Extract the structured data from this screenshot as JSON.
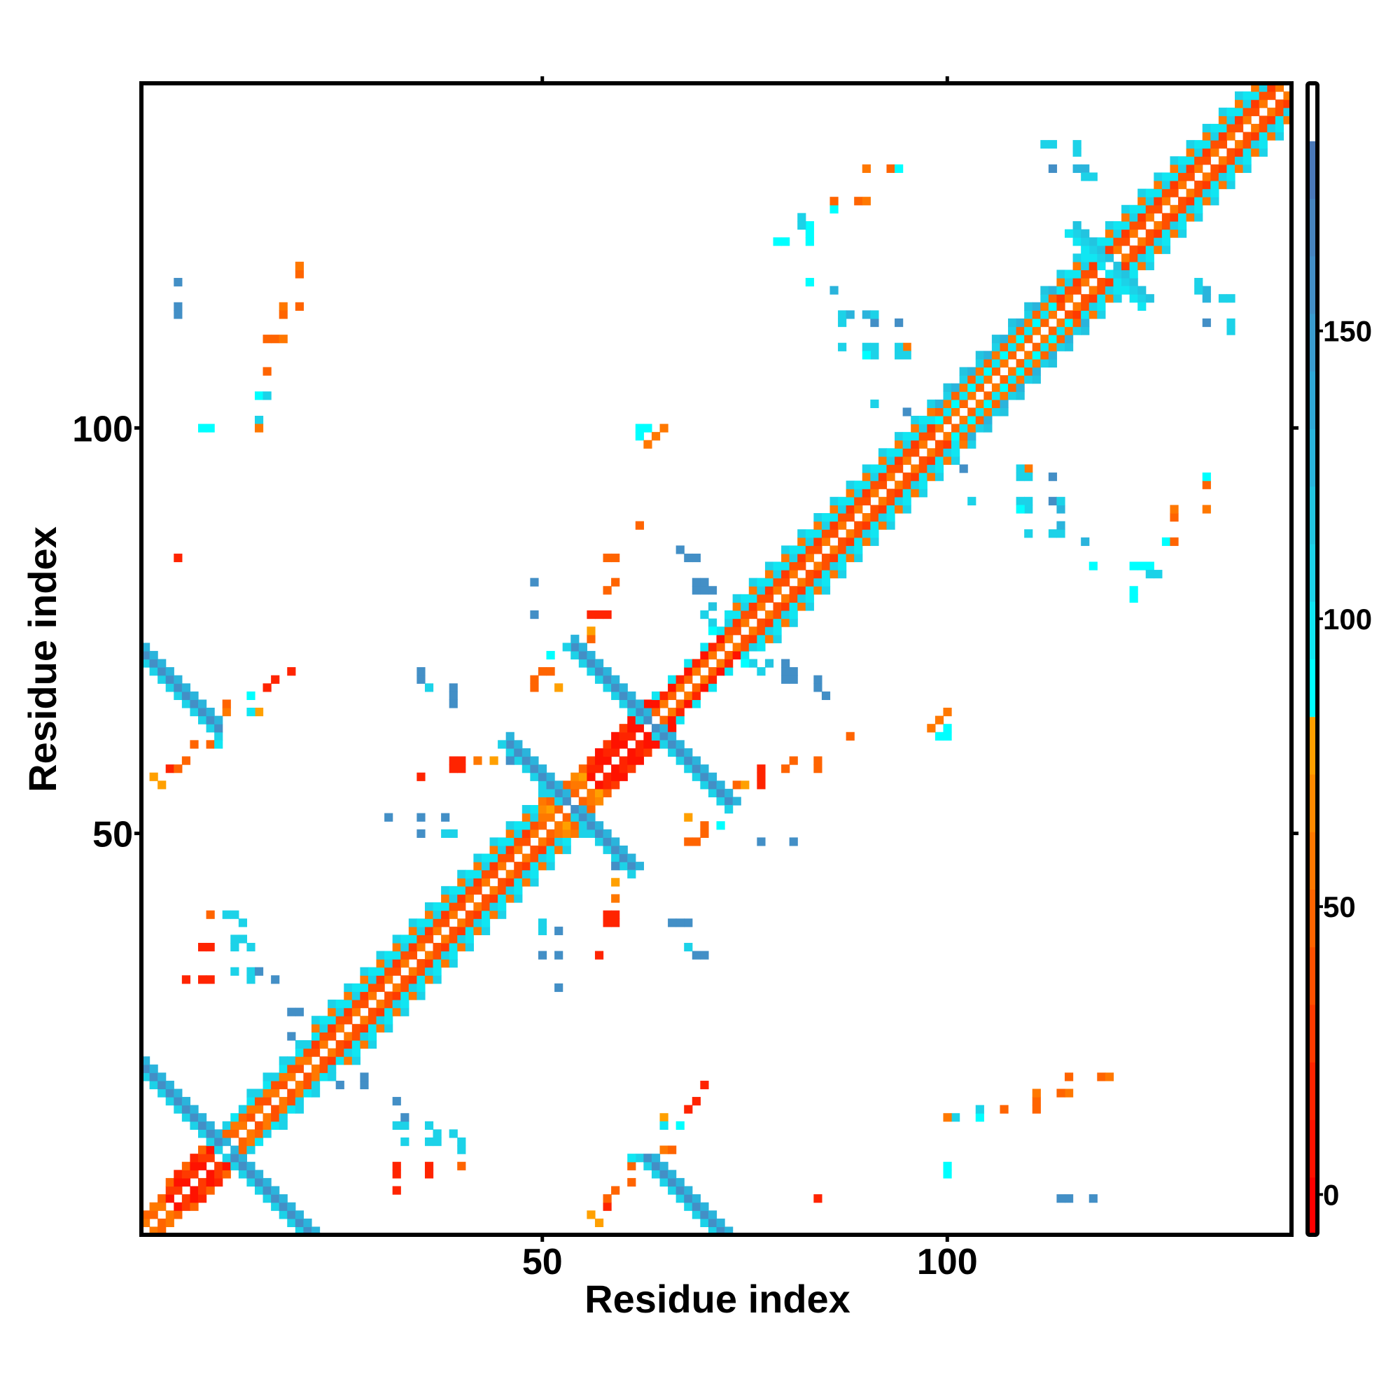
{
  "chart_data": {
    "type": "heatmap",
    "symmetric": true,
    "xlabel": "Residue index",
    "ylabel": "Residue index",
    "xlim": [
      0.5,
      142.5
    ],
    "ylim": [
      0.5,
      142.5
    ],
    "xticks": [
      {
        "value": 50,
        "label": "50"
      },
      {
        "value": 100,
        "label": "100"
      }
    ],
    "yticks": [
      {
        "value": 50,
        "label": "50"
      },
      {
        "value": 100,
        "label": "100"
      }
    ],
    "colorbar": {
      "range": [
        -7,
        193
      ],
      "ticks": [
        {
          "value": 0,
          "label": "0"
        },
        {
          "value": 50,
          "label": "50"
        },
        {
          "value": 100,
          "label": "100"
        },
        {
          "value": 150,
          "label": "150"
        }
      ],
      "bins": [
        [
          -7,
          3,
          "#ff0000"
        ],
        [
          3,
          13,
          "#ff1200"
        ],
        [
          13,
          23,
          "#ff2400"
        ],
        [
          23,
          33,
          "#ff3a00"
        ],
        [
          33,
          43,
          "#ff5000"
        ],
        [
          43,
          53,
          "#ff6400"
        ],
        [
          53,
          63,
          "#ff7800"
        ],
        [
          63,
          73,
          "#ff8a00"
        ],
        [
          73,
          83,
          "#ffa000"
        ],
        [
          83,
          93,
          "#00ffff"
        ],
        [
          93,
          103,
          "#10e6f2"
        ],
        [
          103,
          113,
          "#1cd2e8"
        ],
        [
          113,
          123,
          "#22c4e0"
        ],
        [
          123,
          133,
          "#2ab4dc"
        ],
        [
          133,
          143,
          "#30a8d6"
        ],
        [
          143,
          153,
          "#3a9ccf"
        ],
        [
          153,
          163,
          "#438fc6"
        ],
        [
          163,
          173,
          "#4784be"
        ],
        [
          173,
          183,
          "#4a78b8"
        ],
        [
          183,
          193,
          "#ffffff"
        ]
      ]
    },
    "diagonal_segments": [
      {
        "from": 1,
        "to": 4,
        "profile": [
          45,
          55,
          0
        ],
        "alt": [
          55,
          45,
          0
        ]
      },
      {
        "from": 4,
        "to": 10,
        "profile": [
          5,
          25,
          45
        ],
        "alt": [
          25,
          5,
          15
        ]
      },
      {
        "from": 10,
        "to": 14,
        "profile": [
          45,
          55,
          100
        ],
        "alt": [
          55,
          45,
          110
        ]
      },
      {
        "from": 14,
        "to": 22,
        "profile": [
          40,
          55,
          95,
          110
        ],
        "alt": [
          55,
          40,
          110,
          0
        ]
      },
      {
        "from": 22,
        "to": 50,
        "profile": [
          40,
          25,
          100,
          55,
          110
        ],
        "alt": [
          55,
          40,
          110,
          95,
          0
        ]
      },
      {
        "from": 50,
        "to": 56,
        "profile": [
          45,
          55,
          65
        ],
        "alt": [
          55,
          75,
          45
        ]
      },
      {
        "from": 56,
        "to": 64,
        "profile": [
          5,
          15,
          30
        ],
        "alt": [
          15,
          5,
          5
        ]
      },
      {
        "from": 64,
        "to": 73,
        "profile": [
          45,
          5,
          95
        ],
        "alt": [
          55,
          15,
          0
        ]
      },
      {
        "from": 73,
        "to": 99,
        "profile": [
          40,
          25,
          100,
          55,
          110
        ],
        "alt": [
          55,
          40,
          110,
          95,
          0
        ]
      },
      {
        "from": 99,
        "to": 114,
        "profile": [
          45,
          100,
          55,
          110,
          120
        ],
        "alt": [
          55,
          90,
          45,
          130,
          0
        ]
      },
      {
        "from": 114,
        "to": 142,
        "profile": [
          40,
          25,
          100,
          55,
          110
        ],
        "alt": [
          55,
          40,
          110,
          95,
          0
        ]
      }
    ],
    "antidiagonal_bands": [
      {
        "sum": 22,
        "from": 1,
        "to": 21,
        "values": [
          110,
          160,
          130
        ]
      },
      {
        "sum": 73,
        "from": 1,
        "to": 10,
        "values": [
          110,
          160,
          130
        ]
      },
      {
        "sum": 107,
        "from": 46,
        "to": 61,
        "values": [
          110,
          160,
          130
        ]
      },
      {
        "sum": 127,
        "from": 54,
        "to": 73,
        "values": [
          110,
          160,
          130
        ]
      },
      {
        "sum": 240,
        "from": 116,
        "to": 124,
        "values": [
          100,
          110,
          120
        ]
      }
    ],
    "cells": [
      [
        5,
        118,
        160
      ],
      [
        5,
        115,
        160
      ],
      [
        5,
        114,
        160
      ],
      [
        9,
        100,
        90
      ],
      [
        8,
        100,
        90
      ],
      [
        15,
        104,
        90
      ],
      [
        16,
        104,
        110
      ],
      [
        15,
        101,
        110
      ],
      [
        15,
        100,
        55
      ],
      [
        16,
        107,
        45
      ],
      [
        16,
        111,
        45
      ],
      [
        17,
        111,
        45
      ],
      [
        18,
        111,
        55
      ],
      [
        18,
        115,
        55
      ],
      [
        18,
        114,
        45
      ],
      [
        20,
        115,
        45
      ],
      [
        20,
        119,
        45
      ],
      [
        20,
        120,
        55
      ],
      [
        5,
        84,
        15
      ],
      [
        2,
        57,
        75
      ],
      [
        3,
        56,
        75
      ],
      [
        4,
        58,
        15
      ],
      [
        5,
        58,
        45
      ],
      [
        6,
        59,
        45
      ],
      [
        7,
        61,
        45
      ],
      [
        9,
        61,
        45
      ],
      [
        10,
        61,
        100
      ],
      [
        11,
        65,
        55
      ],
      [
        11,
        66,
        45
      ],
      [
        14,
        67,
        90
      ],
      [
        15,
        65,
        75
      ],
      [
        14,
        65,
        100
      ],
      [
        16,
        68,
        15
      ],
      [
        17,
        69,
        15
      ],
      [
        19,
        70,
        15
      ],
      [
        35,
        70,
        160
      ],
      [
        35,
        69,
        160
      ],
      [
        36,
        68,
        110
      ],
      [
        39,
        68,
        160
      ],
      [
        39,
        67,
        160
      ],
      [
        35,
        57,
        15
      ],
      [
        39,
        59,
        15
      ],
      [
        39,
        58,
        15
      ],
      [
        42,
        59,
        45
      ],
      [
        44,
        59,
        75
      ],
      [
        46,
        59,
        160
      ],
      [
        31,
        52,
        160
      ],
      [
        35,
        52,
        160
      ],
      [
        38,
        52,
        160
      ],
      [
        35,
        50,
        160
      ],
      [
        38,
        50,
        110
      ],
      [
        39,
        50,
        110
      ],
      [
        49,
        69,
        45
      ],
      [
        49,
        68,
        45
      ],
      [
        50,
        70,
        45
      ],
      [
        51,
        70,
        75
      ],
      [
        51,
        72,
        90
      ],
      [
        56,
        74,
        55
      ],
      [
        56,
        77,
        15
      ],
      [
        57,
        77,
        15
      ],
      [
        58,
        77,
        15
      ],
      [
        49,
        81,
        160
      ],
      [
        49,
        77,
        160
      ],
      [
        58,
        80,
        45
      ],
      [
        59,
        81,
        45
      ],
      [
        58,
        84,
        45
      ],
      [
        59,
        84,
        45
      ],
      [
        62,
        88,
        55
      ],
      [
        62,
        99,
        90
      ],
      [
        63,
        100,
        90
      ],
      [
        64,
        99,
        55
      ],
      [
        65,
        100,
        55
      ],
      [
        63,
        98,
        55
      ],
      [
        67,
        85,
        160
      ],
      [
        68,
        84,
        160
      ],
      [
        69,
        84,
        160
      ],
      [
        69,
        80,
        160
      ],
      [
        70,
        80,
        160
      ],
      [
        71,
        80,
        160
      ],
      [
        79,
        123,
        90
      ],
      [
        80,
        123,
        90
      ],
      [
        82,
        126,
        110
      ],
      [
        83,
        125,
        90
      ],
      [
        83,
        124,
        90
      ],
      [
        86,
        127,
        90
      ],
      [
        86,
        128,
        55
      ],
      [
        89,
        128,
        55
      ],
      [
        90,
        128,
        55
      ],
      [
        90,
        132,
        55
      ],
      [
        93,
        132,
        55
      ],
      [
        94,
        132,
        90
      ],
      [
        112,
        135,
        90
      ],
      [
        113,
        135,
        90
      ],
      [
        116,
        135,
        110
      ],
      [
        116,
        134,
        110
      ],
      [
        113,
        132,
        130
      ],
      [
        117,
        132,
        130
      ],
      [
        118,
        131,
        110
      ],
      [
        83,
        118,
        90
      ],
      [
        86,
        117,
        110
      ],
      [
        87,
        114,
        110
      ],
      [
        87,
        113,
        90
      ],
      [
        90,
        114,
        130
      ],
      [
        91,
        113,
        110
      ],
      [
        94,
        113,
        110
      ],
      [
        87,
        110,
        110
      ],
      [
        90,
        110,
        110
      ],
      [
        91,
        110,
        110
      ],
      [
        91,
        109,
        130
      ],
      [
        94,
        109,
        110
      ],
      [
        95,
        110,
        55
      ],
      [
        91,
        103,
        110
      ],
      [
        131,
        117,
        110
      ],
      [
        132,
        116,
        130
      ],
      [
        134,
        116,
        110
      ],
      [
        132,
        113,
        160
      ],
      [
        135,
        113,
        110
      ],
      [
        135,
        112,
        110
      ],
      [
        19,
        28,
        160
      ],
      [
        20,
        28,
        160
      ],
      [
        19,
        25,
        110
      ],
      [
        25,
        19,
        160
      ],
      [
        28,
        19,
        160
      ],
      [
        32,
        17,
        160
      ],
      [
        32,
        14,
        110
      ],
      [
        33,
        12,
        110
      ],
      [
        36,
        14,
        110
      ],
      [
        36,
        12,
        110
      ],
      [
        37,
        12,
        110
      ],
      [
        40,
        12,
        110
      ],
      [
        40,
        11,
        90
      ],
      [
        32,
        9,
        15
      ],
      [
        36,
        9,
        15
      ],
      [
        40,
        9,
        45
      ],
      [
        32,
        6,
        15
      ],
      [
        9,
        40,
        45
      ],
      [
        11,
        40,
        110
      ],
      [
        12,
        40,
        110
      ],
      [
        13,
        39,
        110
      ],
      [
        13,
        37,
        110
      ],
      [
        14,
        36,
        110
      ],
      [
        8,
        36,
        15
      ],
      [
        14,
        33,
        110
      ],
      [
        15,
        33,
        160
      ],
      [
        17,
        32,
        160
      ],
      [
        6,
        32,
        15
      ],
      [
        8,
        32,
        15
      ],
      [
        59,
        44,
        75
      ],
      [
        59,
        42,
        55
      ],
      [
        58,
        40,
        15
      ],
      [
        59,
        40,
        15
      ],
      [
        66,
        39,
        160
      ],
      [
        67,
        39,
        160
      ],
      [
        68,
        39,
        160
      ],
      [
        50,
        39,
        110
      ],
      [
        50,
        38,
        110
      ],
      [
        52,
        38,
        160
      ],
      [
        50,
        35,
        160
      ],
      [
        52,
        35,
        160
      ],
      [
        57,
        35,
        15
      ],
      [
        52,
        31,
        160
      ],
      [
        68,
        36,
        110
      ],
      [
        69,
        35,
        160
      ],
      [
        70,
        35,
        160
      ],
      [
        99,
        64,
        55
      ],
      [
        100,
        62,
        90
      ],
      [
        88,
        62,
        45
      ],
      [
        74,
        56,
        45
      ],
      [
        75,
        56,
        75
      ],
      [
        68,
        52,
        75
      ],
      [
        70,
        51,
        45
      ],
      [
        68,
        49,
        45
      ],
      [
        77,
        49,
        160
      ],
      [
        81,
        49,
        160
      ],
      [
        81,
        70,
        160
      ],
      [
        81,
        69,
        160
      ],
      [
        84,
        69,
        160
      ],
      [
        85,
        67,
        160
      ],
      [
        102,
        95,
        160
      ],
      [
        103,
        91,
        110
      ],
      [
        109,
        95,
        110
      ],
      [
        110,
        94,
        110
      ],
      [
        109,
        91,
        110
      ],
      [
        109,
        90,
        90
      ],
      [
        113,
        94,
        160
      ],
      [
        113,
        91,
        160
      ],
      [
        114,
        91,
        110
      ],
      [
        110,
        87,
        110
      ],
      [
        113,
        87,
        110
      ],
      [
        114,
        87,
        110
      ],
      [
        114,
        88,
        130
      ],
      [
        117,
        86,
        130
      ],
      [
        118,
        83,
        90
      ],
      [
        123,
        83,
        90
      ],
      [
        124,
        83,
        90
      ],
      [
        125,
        82,
        110
      ],
      [
        123,
        80,
        90
      ],
      [
        127,
        86,
        90
      ],
      [
        128,
        86,
        45
      ],
      [
        128,
        89,
        45
      ],
      [
        132,
        94,
        90
      ],
      [
        132,
        93,
        45
      ],
      [
        132,
        90,
        55
      ],
      [
        70,
        77,
        110
      ],
      [
        71,
        76,
        110
      ],
      [
        72,
        75,
        100
      ],
      [
        75,
        71,
        90
      ],
      [
        76,
        71,
        110
      ],
      [
        71,
        78,
        120
      ],
      [
        74,
        74,
        0
      ]
    ]
  }
}
